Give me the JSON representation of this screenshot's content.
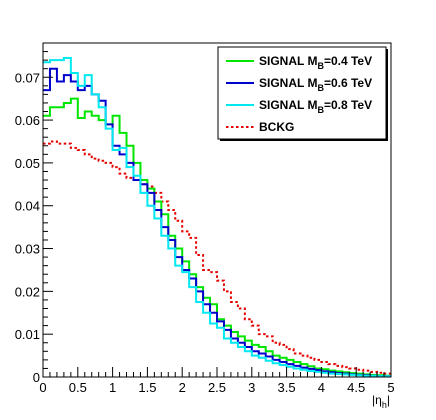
{
  "chart_data": {
    "type": "line",
    "title": "",
    "xlabel": "|η",
    "xlabel_sub": "h",
    "ylabel": "",
    "xlim": [
      0,
      5
    ],
    "ylim": [
      0,
      0.078
    ],
    "x_ticks": [
      0,
      0.5,
      1,
      1.5,
      2,
      2.5,
      3,
      3.5,
      4,
      4.5,
      5
    ],
    "x_tick_labels": [
      "0",
      "0.5",
      "1",
      "1.5",
      "2",
      "2.5",
      "3",
      "3.5",
      "4",
      "4.5",
      "5"
    ],
    "y_ticks": [
      0,
      0.01,
      0.02,
      0.03,
      0.04,
      0.05,
      0.06,
      0.07
    ],
    "y_tick_labels": [
      "0",
      "0.01",
      "0.02",
      "0.03",
      "0.04",
      "0.05",
      "0.06",
      "0.07"
    ],
    "grid": false,
    "legend_position": "top-right",
    "bin_edges": [
      0,
      0.1,
      0.2,
      0.3,
      0.4,
      0.5,
      0.6,
      0.7,
      0.8,
      0.9,
      1.0,
      1.1,
      1.2,
      1.3,
      1.4,
      1.5,
      1.6,
      1.7,
      1.8,
      1.9,
      2.0,
      2.1,
      2.2,
      2.3,
      2.4,
      2.5,
      2.6,
      2.7,
      2.8,
      2.9,
      3.0,
      3.1,
      3.2,
      3.3,
      3.4,
      3.5,
      3.6,
      3.7,
      3.8,
      3.9,
      4.0,
      4.1,
      4.2,
      4.3,
      4.4,
      4.5,
      4.6,
      4.7,
      4.8,
      4.9,
      5.0
    ],
    "series": [
      {
        "name": "SIGNAL M",
        "name_sub": "B",
        "name_suffix": "=0.4 TeV",
        "color": "#00e600",
        "dash": "solid",
        "values": [
          0.061,
          0.063,
          0.063,
          0.064,
          0.065,
          0.0605,
          0.062,
          0.061,
          0.06,
          0.059,
          0.061,
          0.057,
          0.054,
          0.05,
          0.046,
          0.044,
          0.041,
          0.038,
          0.033,
          0.03,
          0.027,
          0.024,
          0.021,
          0.0185,
          0.017,
          0.0135,
          0.012,
          0.0105,
          0.0095,
          0.0085,
          0.0075,
          0.007,
          0.006,
          0.005,
          0.0045,
          0.004,
          0.0035,
          0.003,
          0.0025,
          0.002,
          0.0018,
          0.0015,
          0.0013,
          0.0011,
          0.0009,
          0.0008,
          0.0006,
          0.0005,
          0.0004,
          0.0003
        ]
      },
      {
        "name": "SIGNAL M",
        "name_sub": "B",
        "name_suffix": "=0.6 TeV",
        "color": "#0000cc",
        "dash": "solid",
        "values": [
          0.067,
          0.072,
          0.069,
          0.0705,
          0.069,
          0.067,
          0.068,
          0.066,
          0.0645,
          0.059,
          0.054,
          0.052,
          0.05,
          0.046,
          0.045,
          0.043,
          0.039,
          0.035,
          0.032,
          0.028,
          0.025,
          0.023,
          0.02,
          0.017,
          0.015,
          0.013,
          0.011,
          0.009,
          0.008,
          0.007,
          0.006,
          0.0055,
          0.0048,
          0.004,
          0.0035,
          0.003,
          0.0026,
          0.0022,
          0.0019,
          0.0016,
          0.0013,
          0.0011,
          0.0009,
          0.0008,
          0.0006,
          0.0005,
          0.0004,
          0.0003,
          0.0002,
          0.0002
        ]
      },
      {
        "name": "SIGNAL M",
        "name_sub": "B",
        "name_suffix": "=0.8 TeV",
        "color": "#00e8f0",
        "dash": "solid",
        "values": [
          0.0735,
          0.074,
          0.074,
          0.0745,
          0.071,
          0.068,
          0.0705,
          0.066,
          0.063,
          0.058,
          0.053,
          0.0535,
          0.049,
          0.047,
          0.043,
          0.04,
          0.037,
          0.033,
          0.03,
          0.026,
          0.0245,
          0.021,
          0.0175,
          0.015,
          0.0125,
          0.0115,
          0.009,
          0.008,
          0.007,
          0.006,
          0.005,
          0.0045,
          0.0038,
          0.0032,
          0.0028,
          0.0024,
          0.002,
          0.0017,
          0.0014,
          0.0012,
          0.001,
          0.0008,
          0.0007,
          0.0006,
          0.0005,
          0.0004,
          0.0003,
          0.0003,
          0.0002,
          0.0002
        ]
      },
      {
        "name": "BCKG",
        "color": "#e60000",
        "dash": "dotted",
        "values": [
          0.0545,
          0.055,
          0.0545,
          0.0545,
          0.0535,
          0.053,
          0.052,
          0.051,
          0.0505,
          0.05,
          0.049,
          0.0475,
          0.0465,
          0.046,
          0.045,
          0.0445,
          0.043,
          0.041,
          0.039,
          0.0365,
          0.034,
          0.0325,
          0.0285,
          0.025,
          0.0245,
          0.0225,
          0.02,
          0.0175,
          0.016,
          0.0135,
          0.012,
          0.01,
          0.0095,
          0.008,
          0.0075,
          0.0065,
          0.0055,
          0.005,
          0.0045,
          0.004,
          0.0035,
          0.003,
          0.0026,
          0.0023,
          0.002,
          0.0017,
          0.0015,
          0.0012,
          0.001,
          0.0008
        ]
      }
    ]
  }
}
